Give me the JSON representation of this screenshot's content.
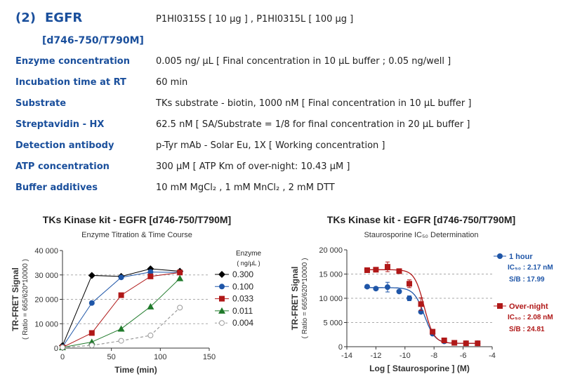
{
  "header": {
    "number": "(2)",
    "name": "EGFR",
    "variant": "[d746-750/T790M]",
    "catalog": "P1HI0315S [ 10 µg ] , P1HI0315L [ 100 µg ]"
  },
  "conditions": [
    {
      "label": "Enzyme concentration",
      "value": "0.005 ng/ µL   [ Final concentration in 10 µL buffer ; 0.05 ng/well ]"
    },
    {
      "label": "Incubation time at RT",
      "value": "60 min"
    },
    {
      "label": "Substrate",
      "value": "TKs substrate - biotin, 1000 nM   [ Final concentration in 10 µL buffer ]"
    },
    {
      "label": "Streptavidin - HX",
      "value": "62.5 nM   [ SA/Substrate = 1/8 for final concentration in 20 µL buffer ]"
    },
    {
      "label": "Detection antibody",
      "value": "p-Tyr mAb - Solar Eu, 1X   [ Working concentration ]"
    },
    {
      "label": "ATP concentration",
      "value": "300 µM   [ ATP Km of over-night: 10.43 µM ]"
    },
    {
      "label": "Buffer additives",
      "value": "10 mM MgCl₂ , 1 mM MnCl₂ , 2 mM DTT"
    }
  ],
  "chart_data": [
    {
      "type": "line",
      "title": "TKs Kinase kit  -  EGFR [d746-750/T790M]",
      "subtitle": "Enzyme Titration & Time Course",
      "xlabel": "Time  (min)",
      "ylabel": "TR-FRET Signal",
      "ylabel2": "( Ratio = 665/620*10000 )",
      "xlim": [
        0,
        150
      ],
      "ylim": [
        0,
        40000
      ],
      "xticks": [
        "0",
        "50",
        "100",
        "150"
      ],
      "yticks": [
        "0",
        "10 000",
        "20 000",
        "30 000",
        "40 000"
      ],
      "legend_title": "Enzyme",
      "legend_unit": "( ng/µL )",
      "grid": "horizontal dashed at 10000, 20000, 30000",
      "legend_placement": "right",
      "x": [
        0,
        30,
        60,
        90,
        120
      ],
      "series": [
        {
          "name": "0.300",
          "color": "#000000",
          "marker": "diamond",
          "values": [
            1000,
            29800,
            29400,
            32500,
            31500
          ]
        },
        {
          "name": "0.100",
          "color": "#1f56a8",
          "marker": "circle",
          "values": [
            500,
            18500,
            29000,
            31200,
            31000
          ]
        },
        {
          "name": "0.033",
          "color": "#b01818",
          "marker": "square",
          "values": [
            300,
            6200,
            21700,
            29400,
            31000
          ]
        },
        {
          "name": "0.011",
          "color": "#1f7a2a",
          "marker": "triangle",
          "values": [
            300,
            2500,
            7900,
            17000,
            28600
          ]
        },
        {
          "name": "0.004",
          "color": "#9a9a9a",
          "marker": "open-circle",
          "dashed": true,
          "values": [
            300,
            1100,
            3000,
            5200,
            16600
          ]
        }
      ]
    },
    {
      "type": "scatter",
      "title": "TKs Kinase kit  -  EGFR [d746-750/T790M]",
      "subtitle": "Staurosporine IC₅₀ Determination",
      "xlabel": "Log [ Staurosporine ]  (M)",
      "ylabel": "TR-FRET Signal",
      "ylabel2": "( Ratio = 665/620*10000 )",
      "xlim": [
        -14,
        -4
      ],
      "ylim": [
        0,
        20000
      ],
      "xticks": [
        "-14",
        "-12",
        "-10",
        "-8",
        "-6",
        "-4"
      ],
      "yticks": [
        "0",
        "5 000",
        "10 000",
        "15 000",
        "20 000"
      ],
      "grid": "horizontal dashed at 5000, 10000, 15000",
      "legend_placement": "right",
      "x": [
        -12.6,
        -12.0,
        -11.2,
        -10.4,
        -9.7,
        -8.9,
        -8.1,
        -7.3,
        -6.6,
        -5.8,
        -5.0
      ],
      "series": [
        {
          "name": "1 hour",
          "ic50": "IC₅₀ : 2.17 nM",
          "sb": "S/B : 17.99",
          "color": "#1f56a8",
          "marker": "circle",
          "values": [
            12400,
            12000,
            12300,
            11400,
            10000,
            7200,
            2700,
            1100,
            800,
            700,
            700
          ],
          "errors": [
            0,
            0,
            1000,
            0,
            500,
            300,
            0,
            0,
            0,
            0,
            0
          ],
          "fit": {
            "bottom": 700,
            "top": 12200,
            "logIC50": -8.66,
            "hill": 1.2
          }
        },
        {
          "name": "Over-night",
          "ic50": "IC₅₀ : 2.08 nM",
          "sb": "S/B : 24.81",
          "color": "#b01818",
          "marker": "square",
          "values": [
            15800,
            15900,
            16500,
            15600,
            13000,
            8800,
            3100,
            1300,
            800,
            700,
            700
          ],
          "errors": [
            0,
            0,
            1000,
            0,
            800,
            1300,
            0,
            0,
            0,
            0,
            0
          ],
          "fit": {
            "bottom": 700,
            "top": 15900,
            "logIC50": -8.68,
            "hill": 1.3
          }
        }
      ]
    }
  ]
}
